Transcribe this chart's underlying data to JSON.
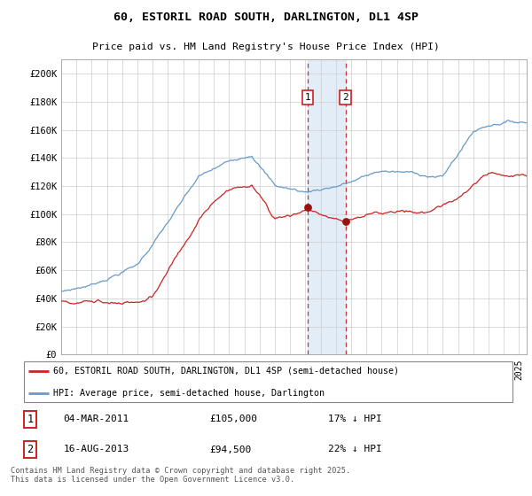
{
  "title": "60, ESTORIL ROAD SOUTH, DARLINGTON, DL1 4SP",
  "subtitle": "Price paid vs. HM Land Registry's House Price Index (HPI)",
  "legend_line1": "60, ESTORIL ROAD SOUTH, DARLINGTON, DL1 4SP (semi-detached house)",
  "legend_line2": "HPI: Average price, semi-detached house, Darlington",
  "annotation1_label": "1",
  "annotation1_date": "04-MAR-2011",
  "annotation1_price": "£105,000",
  "annotation1_pct": "17% ↓ HPI",
  "annotation2_label": "2",
  "annotation2_date": "16-AUG-2013",
  "annotation2_price": "£94,500",
  "annotation2_pct": "22% ↓ HPI",
  "copyright": "Contains HM Land Registry data © Crown copyright and database right 2025.\nThis data is licensed under the Open Government Licence v3.0.",
  "hpi_color": "#6699cc",
  "price_color": "#cc2222",
  "marker_color": "#991111",
  "annotation_box_color": "#cc2222",
  "vline_color": "#cc3333",
  "shade_color": "#dce9f5",
  "grid_color": "#cccccc",
  "background_color": "#ffffff",
  "ytick_labels": [
    "£0",
    "£20K",
    "£40K",
    "£60K",
    "£80K",
    "£100K",
    "£120K",
    "£140K",
    "£160K",
    "£180K",
    "£200K"
  ],
  "ytick_values": [
    0,
    20000,
    40000,
    60000,
    80000,
    100000,
    120000,
    140000,
    160000,
    180000,
    200000
  ],
  "sale1_date_num": 2011.17,
  "sale1_price": 105000,
  "sale2_date_num": 2013.62,
  "sale2_price": 94500,
  "shade_x1": 2011.17,
  "shade_x2": 2013.62,
  "xlim_left": 1995.0,
  "xlim_right": 2025.5,
  "ylim_bottom": 0,
  "ylim_top": 210000
}
